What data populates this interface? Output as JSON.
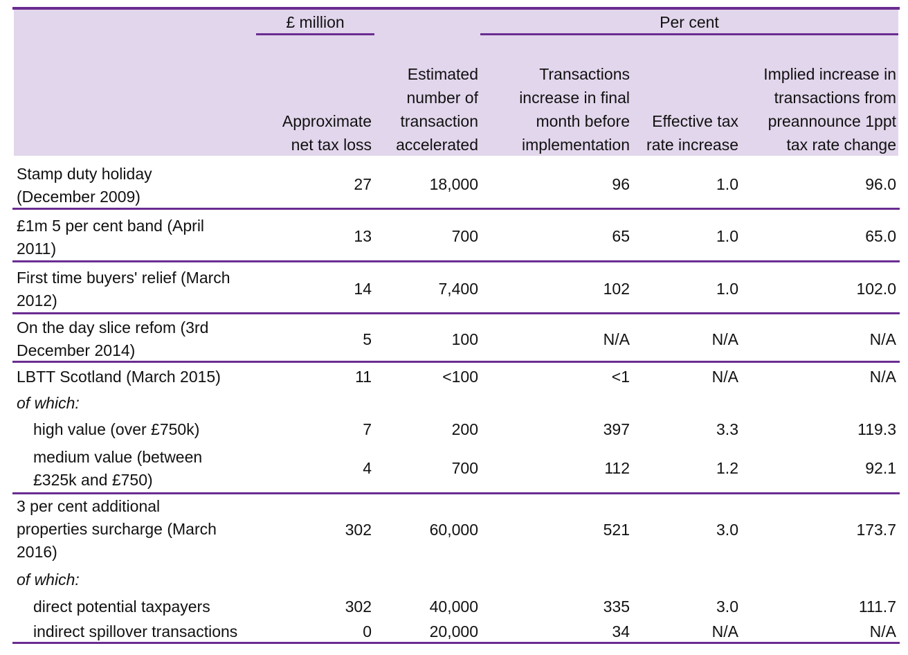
{
  "colors": {
    "accent": "#6a2c91",
    "header_bg": "#e2d6ec"
  },
  "groups": {
    "million": "£ million",
    "per_cent": "Per cent"
  },
  "headers": [
    "Approximate\nnet tax loss",
    "Estimated\nnumber of\ntransaction\naccelerated",
    "Transactions\nincrease in final\nmonth before\nimplementation",
    "Effective tax\nrate increase",
    "Implied increase in\ntransactions from\npreannounce 1ppt\ntax rate change"
  ],
  "rows": [
    {
      "label": "Stamp duty holiday\n(December 2009)",
      "values": [
        "27",
        "18,000",
        "96",
        "1.0",
        "96.0"
      ]
    },
    {
      "label": "£1m 5 per cent band (April\n2011)",
      "values": [
        "13",
        "700",
        "65",
        "1.0",
        "65.0"
      ]
    },
    {
      "label": "First time buyers' relief (March\n2012)",
      "values": [
        "14",
        "7,400",
        "102",
        "1.0",
        "102.0"
      ]
    },
    {
      "label": "On the day slice refom (3rd\nDecember 2014)",
      "values": [
        "5",
        "100",
        "N/A",
        "N/A",
        "N/A"
      ]
    },
    {
      "label": "LBTT Scotland (March 2015)",
      "values": [
        "11",
        "<100",
        "<1",
        "N/A",
        "N/A"
      ]
    },
    {
      "label": "of which:",
      "italic": true,
      "values": []
    },
    {
      "label": "high value (over £750k)",
      "indent": true,
      "values": [
        "7",
        "200",
        "397",
        "3.3",
        "119.3"
      ]
    },
    {
      "label": "medium value (between\n£325k and £750)",
      "indent": true,
      "values": [
        "4",
        "700",
        "112",
        "1.2",
        "92.1"
      ]
    },
    {
      "label": "3 per cent additional\nproperties surcharge (March\n2016)",
      "values": [
        "302",
        "60,000",
        "521",
        "3.0",
        "173.7"
      ]
    },
    {
      "label": "of which:",
      "italic": true,
      "values": []
    },
    {
      "label": "direct potential taxpayers",
      "indent": true,
      "values": [
        "302",
        "40,000",
        "335",
        "3.0",
        "111.7"
      ]
    },
    {
      "label": "indirect spillover transactions",
      "indent": true,
      "values": [
        "0",
        "20,000",
        "34",
        "N/A",
        "N/A"
      ]
    }
  ]
}
